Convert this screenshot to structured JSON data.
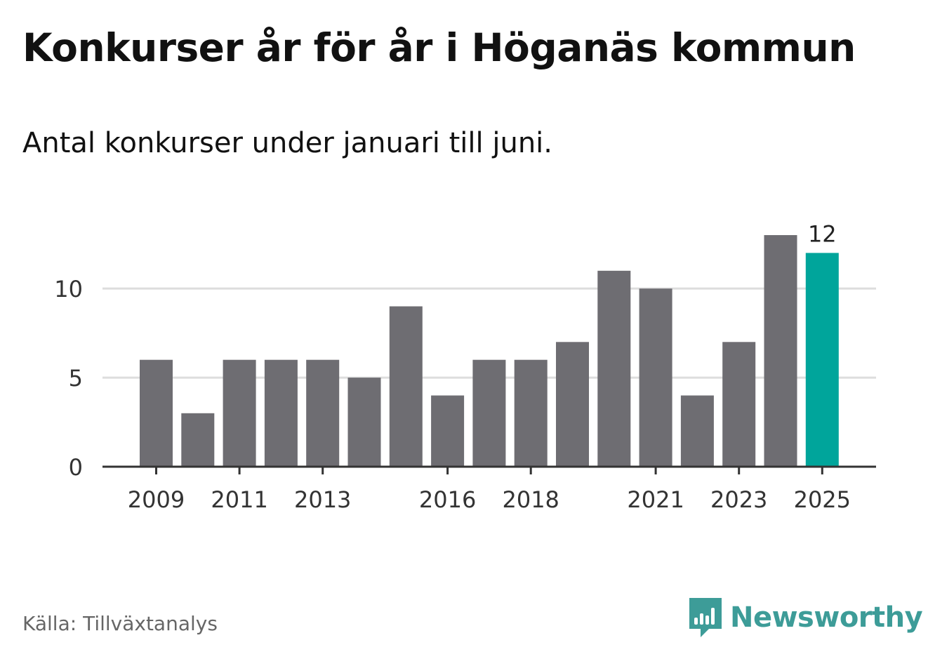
{
  "header": {
    "title": "Konkurser år för år i Höganäs kommun",
    "subtitle": "Antal konkurser under januari till juni."
  },
  "footer": {
    "source": "Källa: Tillväxtanalys",
    "brand": "Newsworthy"
  },
  "colors": {
    "bar": "#6e6d72",
    "highlight": "#00a59b",
    "grid": "#dddddd",
    "axis": "#333333",
    "brand": "#3d9c98"
  },
  "icons": {
    "brand_logo": "newsworthy-logo-icon"
  },
  "chart_data": {
    "type": "bar",
    "categories": [
      "2009",
      "2010",
      "2011",
      "2012",
      "2013",
      "2014",
      "2015",
      "2016",
      "2017",
      "2018",
      "2019",
      "2020",
      "2021",
      "2022",
      "2023",
      "2024",
      "2025"
    ],
    "values": [
      6,
      3,
      6,
      6,
      6,
      5,
      9,
      4,
      6,
      6,
      7,
      11,
      10,
      4,
      7,
      13,
      12
    ],
    "title": "Konkurser år för år i Höganäs kommun",
    "subtitle": "Antal konkurser under januari till juni.",
    "xlabel": "",
    "ylabel": "",
    "ylim": [
      0,
      13
    ],
    "yticks": [
      0,
      5,
      10
    ],
    "xtick_labels": [
      "2009",
      "2011",
      "2013",
      "2016",
      "2018",
      "2021",
      "2023",
      "2025"
    ],
    "highlight_category": "2025",
    "data_labels": [
      {
        "category": "2025",
        "text": "12"
      }
    ],
    "grid": true,
    "legend": "none"
  }
}
